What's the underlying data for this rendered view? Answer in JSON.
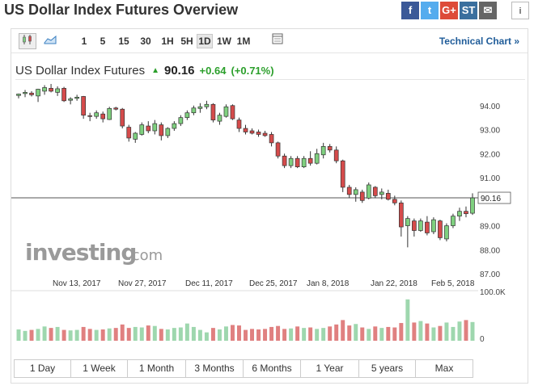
{
  "page_title": "US Dollar Index Futures Overview",
  "share": [
    {
      "icon": "facebook-icon",
      "glyph": "f",
      "color": "#3b5998"
    },
    {
      "icon": "twitter-icon",
      "glyph": "t",
      "color": "#55acee"
    },
    {
      "icon": "google-plus-icon",
      "glyph": "G+",
      "color": "#dd4b39"
    },
    {
      "icon": "stocktwits-icon",
      "glyph": "ST",
      "color": "#3a6f9e"
    },
    {
      "icon": "email-icon",
      "glyph": "✉",
      "color": "#666666"
    }
  ],
  "info_glyph": "i",
  "toolbar": {
    "timeframes": [
      "1",
      "5",
      "15",
      "30",
      "1H",
      "5H",
      "1D",
      "1W",
      "1M"
    ],
    "active_timeframe": "1D",
    "technical_chart": "Technical Chart »"
  },
  "quote": {
    "name": "US Dollar Index Futures",
    "arrow": "▲",
    "price": "90.16",
    "change": "+0.64",
    "change_pct": "(+0.71%)"
  },
  "watermark": {
    "brand": "investing",
    "suffix": ".com"
  },
  "ranges": [
    "1 Day",
    "1 Week",
    "1 Month",
    "3 Months",
    "6 Months",
    "1 Year",
    "5 years",
    "Max"
  ],
  "colors": {
    "up": "#7fd07f",
    "down": "#d54b4b",
    "vol_up": "#9ed7ae",
    "vol_down": "#e08080",
    "accent_green": "#2b9f2b",
    "link": "#1f5c99"
  },
  "chart_data": {
    "type": "candlestick",
    "price_axis": {
      "ticks": [
        "94.00",
        "93.00",
        "92.00",
        "91.00",
        "89.00",
        "88.00",
        "87.00"
      ],
      "range": [
        86.7,
        95.0
      ]
    },
    "last_price_label": "90.16",
    "last_price": 90.16,
    "x_labels": [
      "Nov 13, 2017",
      "Nov 27, 2017",
      "Dec 11, 2017",
      "Dec 25, 2017",
      "Jan 8, 2018",
      "Jan 22, 2018",
      "Feb 5, 2018"
    ],
    "volume_axis": {
      "ticks": [
        "100.0K",
        "0"
      ],
      "max": 100000
    },
    "candles": [
      {
        "o": 94.42,
        "h": 94.5,
        "l": 94.3,
        "c": 94.48
      },
      {
        "o": 94.5,
        "h": 94.65,
        "l": 94.35,
        "c": 94.55
      },
      {
        "o": 94.52,
        "h": 94.6,
        "l": 94.38,
        "c": 94.45
      },
      {
        "o": 94.4,
        "h": 94.7,
        "l": 94.15,
        "c": 94.68
      },
      {
        "o": 94.6,
        "h": 94.85,
        "l": 94.45,
        "c": 94.75
      },
      {
        "o": 94.72,
        "h": 94.9,
        "l": 94.55,
        "c": 94.6
      },
      {
        "o": 94.55,
        "h": 94.8,
        "l": 94.4,
        "c": 94.7
      },
      {
        "o": 94.72,
        "h": 94.78,
        "l": 94.15,
        "c": 94.2
      },
      {
        "o": 94.22,
        "h": 94.35,
        "l": 94.05,
        "c": 94.28
      },
      {
        "o": 94.3,
        "h": 94.45,
        "l": 94.2,
        "c": 94.35
      },
      {
        "o": 94.38,
        "h": 94.4,
        "l": 93.45,
        "c": 93.6
      },
      {
        "o": 93.58,
        "h": 93.7,
        "l": 93.35,
        "c": 93.55
      },
      {
        "o": 93.55,
        "h": 93.8,
        "l": 93.45,
        "c": 93.7
      },
      {
        "o": 93.65,
        "h": 93.75,
        "l": 93.3,
        "c": 93.45
      },
      {
        "o": 93.42,
        "h": 93.95,
        "l": 93.4,
        "c": 93.88
      },
      {
        "o": 93.9,
        "h": 93.95,
        "l": 93.8,
        "c": 93.85
      },
      {
        "o": 93.85,
        "h": 93.9,
        "l": 93.05,
        "c": 93.15
      },
      {
        "o": 93.1,
        "h": 93.2,
        "l": 92.5,
        "c": 92.65
      },
      {
        "o": 92.6,
        "h": 92.9,
        "l": 92.45,
        "c": 92.85
      },
      {
        "o": 92.8,
        "h": 93.3,
        "l": 92.75,
        "c": 93.2
      },
      {
        "o": 93.15,
        "h": 93.35,
        "l": 92.85,
        "c": 92.95
      },
      {
        "o": 92.95,
        "h": 93.4,
        "l": 92.8,
        "c": 93.25
      },
      {
        "o": 93.2,
        "h": 93.3,
        "l": 92.55,
        "c": 92.75
      },
      {
        "o": 92.75,
        "h": 93.1,
        "l": 92.65,
        "c": 93.05
      },
      {
        "o": 93.05,
        "h": 93.35,
        "l": 92.95,
        "c": 93.25
      },
      {
        "o": 93.25,
        "h": 93.6,
        "l": 93.15,
        "c": 93.5
      },
      {
        "o": 93.5,
        "h": 93.8,
        "l": 93.4,
        "c": 93.7
      },
      {
        "o": 93.7,
        "h": 94.0,
        "l": 93.6,
        "c": 93.9
      },
      {
        "o": 93.88,
        "h": 94.1,
        "l": 93.7,
        "c": 93.95
      },
      {
        "o": 93.95,
        "h": 94.2,
        "l": 93.85,
        "c": 94.05
      },
      {
        "o": 94.05,
        "h": 94.1,
        "l": 93.3,
        "c": 93.4
      },
      {
        "o": 93.35,
        "h": 93.7,
        "l": 93.2,
        "c": 93.6
      },
      {
        "o": 93.55,
        "h": 94.05,
        "l": 93.5,
        "c": 93.95
      },
      {
        "o": 94.0,
        "h": 94.05,
        "l": 93.4,
        "c": 93.45
      },
      {
        "o": 93.4,
        "h": 93.5,
        "l": 92.9,
        "c": 93.05
      },
      {
        "o": 93.05,
        "h": 93.2,
        "l": 92.8,
        "c": 92.9
      },
      {
        "o": 92.95,
        "h": 93.05,
        "l": 92.8,
        "c": 92.85
      },
      {
        "o": 92.9,
        "h": 93.0,
        "l": 92.7,
        "c": 92.8
      },
      {
        "o": 92.85,
        "h": 92.95,
        "l": 92.7,
        "c": 92.75
      },
      {
        "o": 92.8,
        "h": 92.9,
        "l": 92.3,
        "c": 92.45
      },
      {
        "o": 92.45,
        "h": 92.5,
        "l": 91.8,
        "c": 91.9
      },
      {
        "o": 91.9,
        "h": 92.0,
        "l": 91.4,
        "c": 91.5
      },
      {
        "o": 91.5,
        "h": 91.9,
        "l": 91.4,
        "c": 91.8
      },
      {
        "o": 91.8,
        "h": 91.9,
        "l": 91.4,
        "c": 91.45
      },
      {
        "o": 91.45,
        "h": 91.9,
        "l": 91.4,
        "c": 91.8
      },
      {
        "o": 91.8,
        "h": 92.1,
        "l": 91.5,
        "c": 91.6
      },
      {
        "o": 91.6,
        "h": 92.2,
        "l": 91.55,
        "c": 92.0
      },
      {
        "o": 91.95,
        "h": 92.45,
        "l": 91.8,
        "c": 92.3
      },
      {
        "o": 92.3,
        "h": 92.4,
        "l": 92.05,
        "c": 92.15
      },
      {
        "o": 92.15,
        "h": 92.3,
        "l": 91.6,
        "c": 91.7
      },
      {
        "o": 91.7,
        "h": 91.75,
        "l": 90.4,
        "c": 90.6
      },
      {
        "o": 90.6,
        "h": 90.7,
        "l": 90.15,
        "c": 90.3
      },
      {
        "o": 90.3,
        "h": 90.6,
        "l": 90.0,
        "c": 90.5
      },
      {
        "o": 90.4,
        "h": 90.5,
        "l": 89.95,
        "c": 90.05
      },
      {
        "o": 90.15,
        "h": 90.8,
        "l": 90.1,
        "c": 90.7
      },
      {
        "o": 90.6,
        "h": 90.65,
        "l": 90.15,
        "c": 90.25
      },
      {
        "o": 90.3,
        "h": 90.55,
        "l": 90.1,
        "c": 90.4
      },
      {
        "o": 90.35,
        "h": 90.5,
        "l": 90.05,
        "c": 90.1
      },
      {
        "o": 90.1,
        "h": 90.25,
        "l": 89.85,
        "c": 89.95
      },
      {
        "o": 89.95,
        "h": 90.05,
        "l": 88.55,
        "c": 88.95
      },
      {
        "o": 89.0,
        "h": 89.4,
        "l": 88.1,
        "c": 89.3
      },
      {
        "o": 89.2,
        "h": 89.3,
        "l": 88.55,
        "c": 88.8
      },
      {
        "o": 88.8,
        "h": 89.3,
        "l": 88.75,
        "c": 89.2
      },
      {
        "o": 89.15,
        "h": 89.4,
        "l": 88.6,
        "c": 88.7
      },
      {
        "o": 88.75,
        "h": 89.35,
        "l": 88.65,
        "c": 89.25
      },
      {
        "o": 89.2,
        "h": 89.25,
        "l": 88.4,
        "c": 88.5
      },
      {
        "o": 88.45,
        "h": 89.1,
        "l": 88.35,
        "c": 89.0
      },
      {
        "o": 89.0,
        "h": 89.5,
        "l": 88.9,
        "c": 89.4
      },
      {
        "o": 89.4,
        "h": 89.75,
        "l": 89.2,
        "c": 89.6
      },
      {
        "o": 89.6,
        "h": 89.8,
        "l": 89.35,
        "c": 89.5
      },
      {
        "o": 89.52,
        "h": 90.35,
        "l": 89.45,
        "c": 90.16
      }
    ],
    "volume": [
      23000,
      20000,
      22000,
      24000,
      29000,
      26000,
      28000,
      22000,
      21000,
      22000,
      28000,
      24000,
      22000,
      23000,
      25000,
      26000,
      33000,
      26000,
      28000,
      27000,
      31000,
      30000,
      24000,
      23000,
      26000,
      27000,
      35000,
      28000,
      22000,
      17000,
      26000,
      23000,
      29000,
      32000,
      31000,
      22000,
      24000,
      23000,
      24000,
      28000,
      30000,
      24000,
      25000,
      29000,
      26000,
      27000,
      24000,
      26000,
      29000,
      33000,
      42000,
      31000,
      34000,
      27000,
      24000,
      29000,
      26000,
      28000,
      27000,
      36000,
      84000,
      37000,
      40000,
      35000,
      27000,
      30000,
      37000,
      28000,
      39000,
      42000,
      38000
    ]
  }
}
